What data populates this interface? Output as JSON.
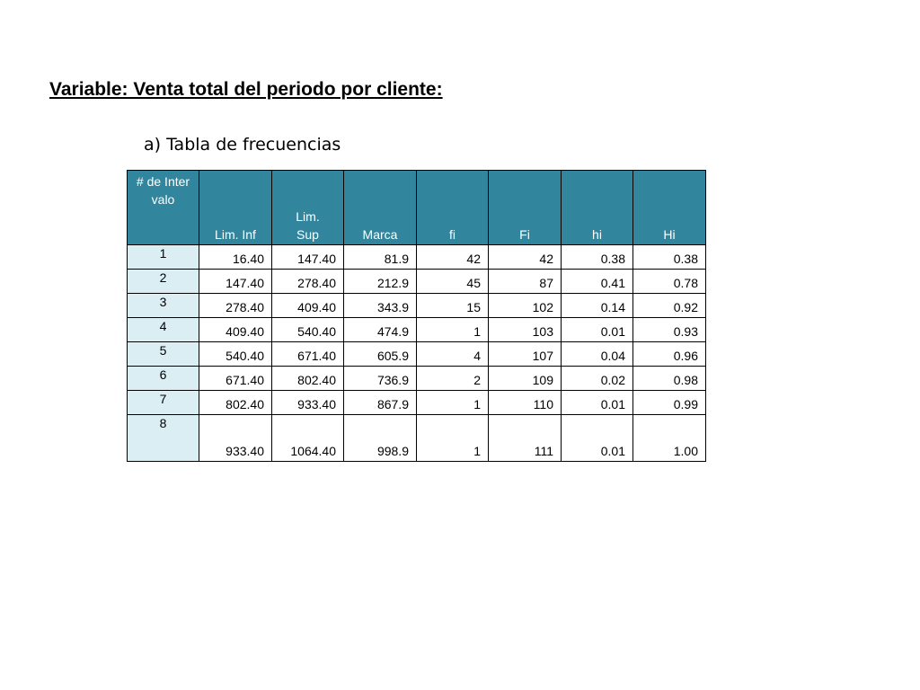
{
  "heading": "Variable: Venta total del periodo por cliente:",
  "subheading": "a) Tabla de frecuencias",
  "table": {
    "headers": [
      "# de Intervalo",
      "Lim. Inf",
      "Lim. Sup",
      "Marca",
      "fi",
      "Fi",
      "hi",
      "Hi"
    ],
    "rows": [
      [
        "1",
        "16.40",
        "147.40",
        "81.9",
        "42",
        "42",
        "0.38",
        "0.38"
      ],
      [
        "2",
        "147.40",
        "278.40",
        "212.9",
        "45",
        "87",
        "0.41",
        "0.78"
      ],
      [
        "3",
        "278.40",
        "409.40",
        "343.9",
        "15",
        "102",
        "0.14",
        "0.92"
      ],
      [
        "4",
        "409.40",
        "540.40",
        "474.9",
        "1",
        "103",
        "0.01",
        "0.93"
      ],
      [
        "5",
        "540.40",
        "671.40",
        "605.9",
        "4",
        "107",
        "0.04",
        "0.96"
      ],
      [
        "6",
        "671.40",
        "802.40",
        "736.9",
        "2",
        "109",
        "0.02",
        "0.98"
      ],
      [
        "7",
        "802.40",
        "933.40",
        "867.9",
        "1",
        "110",
        "0.01",
        "0.99"
      ],
      [
        "8",
        "933.40",
        "1064.40",
        "998.9",
        "1",
        "111",
        "0.01",
        "1.00"
      ]
    ]
  },
  "colors": {
    "header_bg": "#31859c",
    "index_bg": "#dbeef4"
  }
}
